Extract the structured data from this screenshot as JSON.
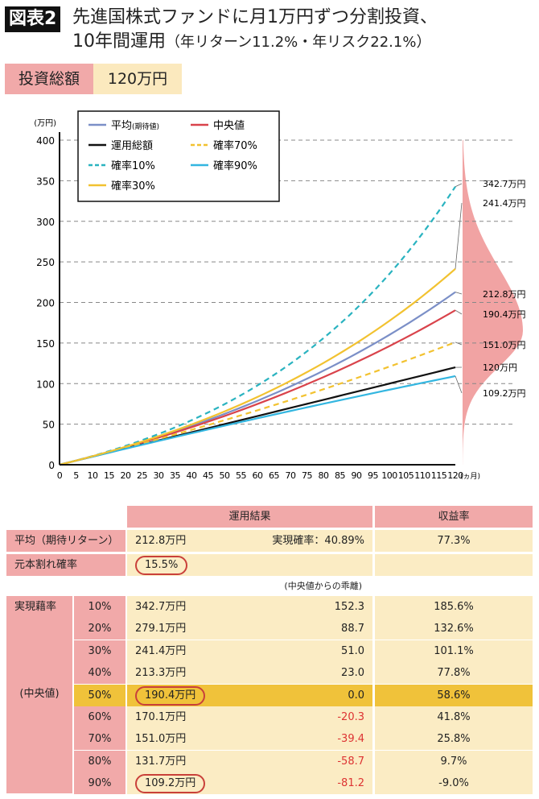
{
  "header": {
    "badge": "図表2",
    "title_line1": "先進国株式ファンドに月1万円ずつ分割投資、",
    "title_line2": "10年間運用",
    "title_sub": "（年リターン11.2%・年リスク22.1%）"
  },
  "investment": {
    "label": "投資総額",
    "value": "120万円"
  },
  "chart_data": {
    "type": "line",
    "ylabel": "(万円)",
    "xlabel": "(ヵ月)",
    "xlim": [
      0,
      120
    ],
    "ylim": [
      0,
      400
    ],
    "xticks": [
      "0",
      "5",
      "10",
      "15",
      "20",
      "25",
      "30",
      "35",
      "40",
      "45",
      "50",
      "55",
      "60",
      "65",
      "70",
      "75",
      "80",
      "85",
      "90",
      "95",
      "100",
      "105",
      "110",
      "115",
      "120"
    ],
    "yticks": [
      "0",
      "50",
      "100",
      "150",
      "200",
      "250",
      "300",
      "350",
      "400"
    ],
    "grid": "horizontal dashed",
    "legend_position": "top-left",
    "series": [
      {
        "name": "平均",
        "name_note": "(期待値)",
        "color": "#7b8fc7",
        "dash": false,
        "end_value": 212.8,
        "end_label": "212.8万円"
      },
      {
        "name": "中央値",
        "color": "#d9434b",
        "dash": false,
        "end_value": 190.4,
        "end_label": "190.4万円"
      },
      {
        "name": "運用総額",
        "color": "#111111",
        "dash": false,
        "end_value": 120,
        "end_label": "120万円"
      },
      {
        "name": "確率70%",
        "color": "#f2c230",
        "dash": true,
        "end_value": 151.0,
        "end_label": "151.0万円"
      },
      {
        "name": "確率10%",
        "color": "#2ab3c0",
        "dash": true,
        "end_value": 342.7,
        "end_label": "342.7万円"
      },
      {
        "name": "確率90%",
        "color": "#33b6e0",
        "dash": false,
        "end_value": 109.2,
        "end_label": "109.2万円"
      },
      {
        "name": "確率30%",
        "color": "#f2c230",
        "dash": false,
        "end_value": 241.4,
        "end_label": "241.4万円"
      }
    ],
    "distribution_color": "#f1a3a3"
  },
  "table": {
    "head": {
      "result": "運用結果",
      "yield": "収益率"
    },
    "mean": {
      "label": "平均（期待リターン）",
      "value": "212.8万円",
      "prob": "実現確率：40.89%",
      "yield": "77.3%"
    },
    "loss": {
      "label": "元本割れ確率",
      "value": "15.5%"
    },
    "note": "(中央値からの乖離)",
    "group_label": "実現藉率",
    "median_label": "(中央値)",
    "rows": [
      {
        "p": "10%",
        "value": "342.7万円",
        "dev": "152.3",
        "yield": "185.6%"
      },
      {
        "p": "20%",
        "value": "279.1万円",
        "dev": "88.7",
        "yield": "132.6%"
      },
      {
        "p": "30%",
        "value": "241.4万円",
        "dev": "51.0",
        "yield": "101.1%"
      },
      {
        "p": "40%",
        "value": "213.3万円",
        "dev": "23.0",
        "yield": "77.8%"
      },
      {
        "p": "50%",
        "value": "190.4万円",
        "dev": "0.0",
        "yield": "58.6%"
      },
      {
        "p": "60%",
        "value": "170.1万円",
        "dev": "-20.3",
        "yield": "41.8%"
      },
      {
        "p": "70%",
        "value": "151.0万円",
        "dev": "-39.4",
        "yield": "25.8%"
      },
      {
        "p": "80%",
        "value": "131.7万円",
        "dev": "-58.7",
        "yield": "9.7%"
      },
      {
        "p": "90%",
        "value": "109.2万円",
        "dev": "-81.2",
        "yield": "-9.0%"
      }
    ]
  }
}
